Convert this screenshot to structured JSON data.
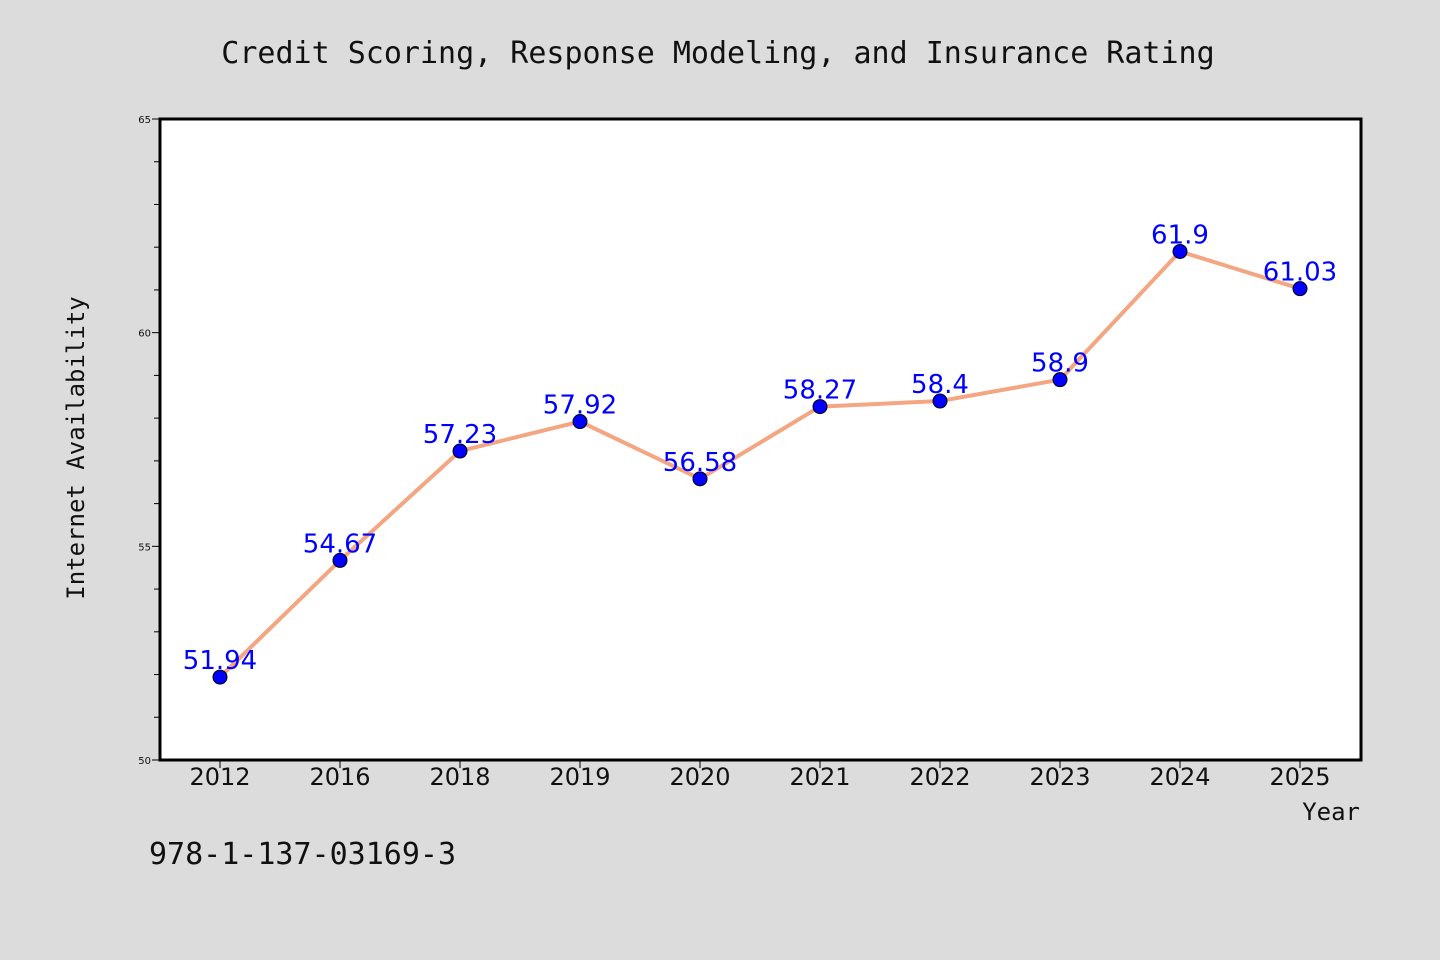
{
  "chart_data": {
    "type": "line",
    "title": "Credit Scoring, Response Modeling, and Insurance Rating",
    "xlabel": "Year",
    "ylabel": "Internet Availability",
    "categories": [
      "2012",
      "2016",
      "2018",
      "2019",
      "2020",
      "2021",
      "2022",
      "2023",
      "2024",
      "2025"
    ],
    "values": [
      51.94,
      54.67,
      57.23,
      57.92,
      56.58,
      58.27,
      58.4,
      58.9,
      61.9,
      61.03
    ],
    "data_labels": [
      "51.94",
      "54.67",
      "57.23",
      "57.92",
      "56.58",
      "58.27",
      "58.4",
      "58.9",
      "61.9",
      "61.03"
    ],
    "ylim": [
      50,
      65
    ],
    "yticks": [
      "50",
      "55",
      "60",
      "65"
    ],
    "line_color": "#f4a582",
    "marker_color": "#0000ff",
    "label_color": "#0000ff",
    "grid": false,
    "legend": "none"
  },
  "annotation": {
    "isbn": "978-1-137-03169-3"
  },
  "colors": {
    "background": "#dcdcdc",
    "plot_background": "#ffffff"
  }
}
